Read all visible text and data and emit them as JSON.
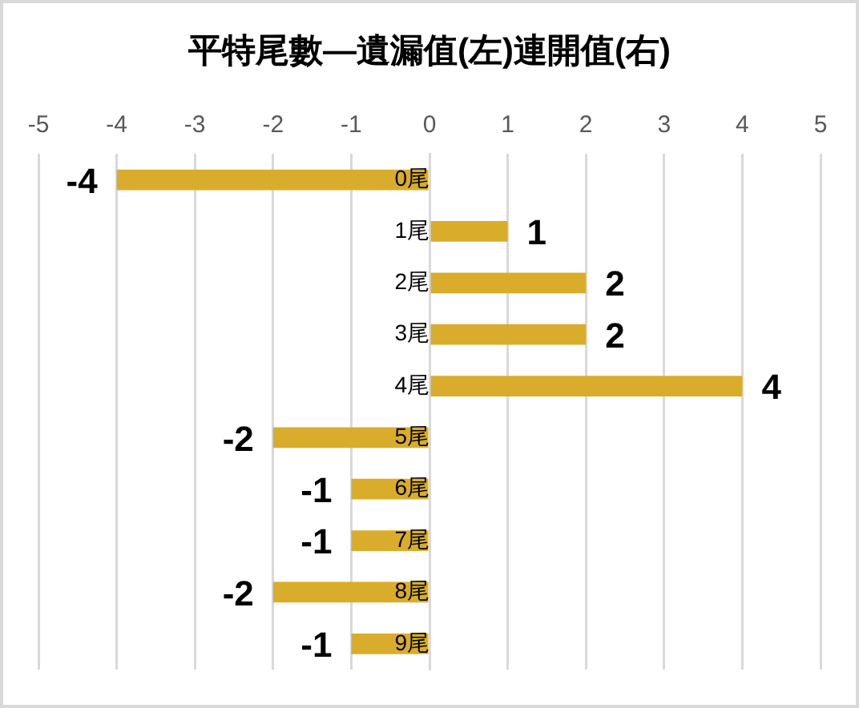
{
  "chart_data": {
    "type": "bar",
    "orientation": "horizontal",
    "title": "平特尾數—遺漏值(左)連開值(右)",
    "categories": [
      "0尾",
      "1尾",
      "2尾",
      "3尾",
      "4尾",
      "5尾",
      "6尾",
      "7尾",
      "8尾",
      "9尾"
    ],
    "values": [
      -4,
      1,
      2,
      2,
      4,
      -2,
      -1,
      -1,
      -2,
      -1
    ],
    "color": "#d9ad2b",
    "xlim": [
      -5,
      5
    ],
    "xticks": [
      -5,
      -4,
      -3,
      -2,
      -1,
      0,
      1,
      2,
      3,
      4,
      5
    ],
    "grid": "x",
    "data_labels": true
  }
}
